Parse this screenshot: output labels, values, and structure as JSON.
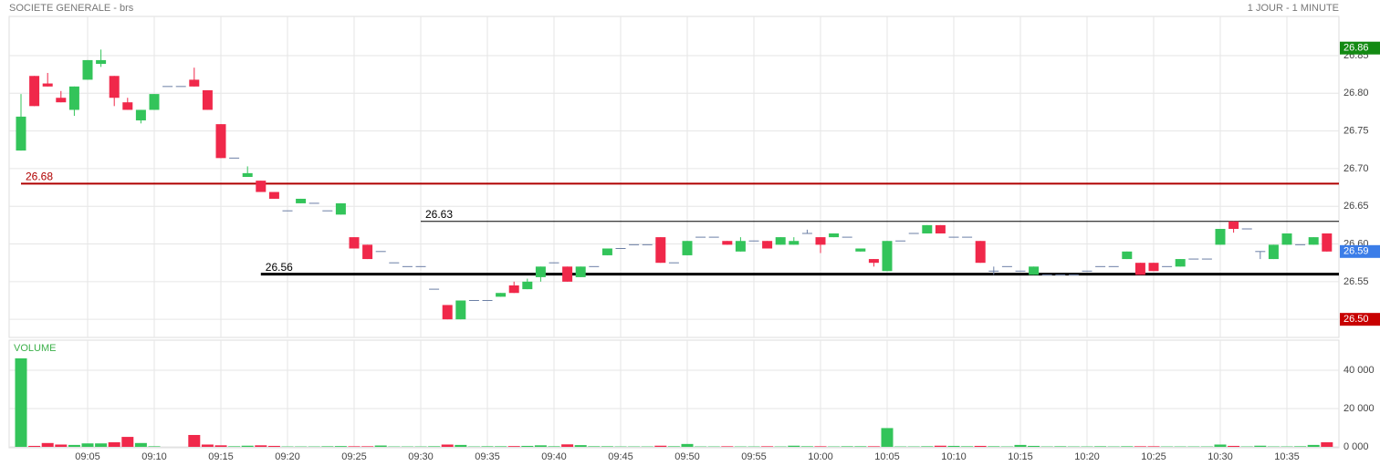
{
  "chart_data": {
    "type": "candlestick",
    "title": "SOCIETE GENERALE - brs",
    "subtitle": "1 JOUR - 1 MINUTE",
    "volume_label": "VOLUME",
    "categories": [
      null,
      null,
      null,
      null,
      null,
      "09:05",
      null,
      null,
      null,
      null,
      "09:10",
      null,
      null,
      null,
      null,
      "09:15",
      null,
      null,
      null,
      null,
      "09:20",
      null,
      null,
      null,
      null,
      "09:25",
      null,
      null,
      null,
      null,
      "09:30",
      null,
      null,
      null,
      null,
      "09:35",
      null,
      null,
      null,
      null,
      "09:40",
      null,
      null,
      null,
      null,
      "09:45",
      null,
      null,
      null,
      null,
      "09:50",
      null,
      null,
      null,
      null,
      "09:55",
      null,
      null,
      null,
      null,
      "10:00",
      null,
      null,
      null,
      null,
      "10:05",
      null,
      null,
      null,
      null,
      "10:10",
      null,
      null,
      null,
      null,
      "10:15",
      null,
      null,
      null,
      null,
      "10:20",
      null,
      null,
      null,
      null,
      "10:25",
      null,
      null,
      null,
      null,
      "10:30",
      null,
      null,
      null,
      null,
      "10:35",
      null,
      null,
      null
    ],
    "open": [
      26.724,
      26.823,
      26.813,
      26.794,
      26.778,
      26.818,
      26.839,
      26.823,
      26.788,
      26.764,
      26.778,
      26.809,
      26.809,
      26.818,
      26.804,
      26.759,
      26.714,
      26.689,
      26.684,
      26.669,
      26.644,
      26.654,
      26.654,
      26.644,
      26.639,
      26.609,
      26.599,
      26.59,
      26.575,
      26.57,
      26.57,
      26.54,
      26.519,
      26.5,
      26.525,
      26.525,
      26.53,
      26.545,
      26.54,
      26.556,
      26.575,
      26.57,
      26.556,
      26.57,
      26.585,
      26.594,
      26.599,
      26.599,
      26.609,
      26.575,
      26.585,
      26.609,
      26.609,
      26.604,
      26.59,
      26.604,
      26.604,
      26.599,
      26.599,
      26.614,
      26.609,
      26.609,
      26.609,
      26.59,
      26.58,
      26.564,
      26.604,
      26.614,
      26.614,
      26.625,
      26.609,
      26.609,
      26.604,
      26.564,
      26.57,
      26.564,
      26.559,
      26.559,
      26.559,
      26.559,
      26.564,
      26.57,
      26.57,
      26.58,
      26.575,
      26.575,
      26.57,
      26.57,
      26.58,
      26.58,
      26.599,
      26.63,
      26.62,
      26.59,
      26.58,
      26.599,
      26.599,
      26.599,
      26.614
    ],
    "high": [
      26.799,
      26.823,
      26.827,
      26.803,
      26.809,
      26.844,
      26.858,
      26.823,
      26.794,
      26.778,
      26.799,
      26.809,
      26.809,
      26.834,
      26.804,
      26.759,
      26.714,
      26.703,
      26.684,
      26.669,
      26.644,
      26.66,
      26.654,
      26.644,
      26.654,
      26.609,
      26.599,
      26.59,
      26.575,
      26.57,
      26.57,
      26.54,
      26.519,
      26.525,
      26.525,
      26.525,
      26.535,
      26.55,
      26.554,
      26.57,
      26.575,
      26.57,
      26.57,
      26.57,
      26.594,
      26.594,
      26.599,
      26.599,
      26.609,
      26.575,
      26.604,
      26.609,
      26.609,
      26.604,
      26.609,
      26.604,
      26.604,
      26.609,
      26.609,
      26.619,
      26.609,
      26.614,
      26.609,
      26.594,
      26.58,
      26.604,
      26.604,
      26.614,
      26.625,
      26.625,
      26.609,
      26.609,
      26.604,
      26.57,
      26.57,
      26.564,
      26.57,
      26.559,
      26.559,
      26.559,
      26.564,
      26.57,
      26.57,
      26.59,
      26.575,
      26.575,
      26.57,
      26.58,
      26.58,
      26.58,
      26.62,
      26.63,
      26.62,
      26.59,
      26.599,
      26.614,
      26.599,
      26.609,
      26.614
    ],
    "low": [
      26.724,
      26.783,
      26.809,
      26.788,
      26.77,
      26.818,
      26.835,
      26.783,
      26.778,
      26.76,
      26.778,
      26.809,
      26.809,
      26.809,
      26.778,
      26.714,
      26.714,
      26.689,
      26.669,
      26.66,
      26.644,
      26.654,
      26.654,
      26.644,
      26.639,
      26.594,
      26.58,
      26.59,
      26.575,
      26.57,
      26.57,
      26.54,
      26.5,
      26.5,
      26.525,
      26.525,
      26.53,
      26.535,
      26.54,
      26.55,
      26.575,
      26.55,
      26.556,
      26.57,
      26.585,
      26.594,
      26.599,
      26.599,
      26.575,
      26.575,
      26.585,
      26.609,
      26.609,
      26.599,
      26.59,
      26.604,
      26.594,
      26.599,
      26.599,
      26.614,
      26.588,
      26.609,
      26.609,
      26.59,
      26.57,
      26.564,
      26.604,
      26.614,
      26.614,
      26.614,
      26.609,
      26.609,
      26.575,
      26.559,
      26.57,
      26.564,
      26.559,
      26.559,
      26.559,
      26.559,
      26.564,
      26.57,
      26.57,
      26.58,
      26.559,
      26.564,
      26.57,
      26.57,
      26.58,
      26.58,
      26.599,
      26.615,
      26.62,
      26.58,
      26.58,
      26.599,
      26.599,
      26.599,
      26.59
    ],
    "close": [
      26.769,
      26.783,
      26.809,
      26.788,
      26.809,
      26.844,
      26.844,
      26.794,
      26.778,
      26.778,
      26.799,
      26.809,
      26.809,
      26.809,
      26.778,
      26.714,
      26.714,
      26.694,
      26.669,
      26.66,
      26.644,
      26.66,
      26.654,
      26.644,
      26.654,
      26.594,
      26.58,
      26.59,
      26.575,
      26.57,
      26.57,
      26.54,
      26.5,
      26.525,
      26.525,
      26.525,
      26.535,
      26.535,
      26.55,
      26.57,
      26.575,
      26.55,
      26.57,
      26.57,
      26.594,
      26.594,
      26.599,
      26.599,
      26.575,
      26.575,
      26.604,
      26.609,
      26.609,
      26.599,
      26.604,
      26.604,
      26.594,
      26.609,
      26.604,
      26.614,
      26.599,
      26.614,
      26.609,
      26.594,
      26.575,
      26.604,
      26.604,
      26.614,
      26.625,
      26.614,
      26.609,
      26.609,
      26.575,
      26.564,
      26.57,
      26.564,
      26.57,
      26.559,
      26.559,
      26.559,
      26.564,
      26.57,
      26.57,
      26.59,
      26.559,
      26.564,
      26.57,
      26.58,
      26.58,
      26.58,
      26.62,
      26.62,
      26.62,
      26.59,
      26.599,
      26.614,
      26.599,
      26.609,
      26.59
    ],
    "volume": [
      46200,
      500,
      2000,
      1200,
      1000,
      1800,
      1800,
      2400,
      5200,
      2000,
      300,
      0,
      0,
      6200,
      1200,
      800,
      300,
      600,
      800,
      500,
      200,
      200,
      200,
      300,
      400,
      300,
      300,
      700,
      200,
      200,
      200,
      300,
      1200,
      1000,
      200,
      300,
      300,
      400,
      500,
      800,
      300,
      1300,
      900,
      300,
      300,
      200,
      200,
      200,
      600,
      300,
      1500,
      200,
      200,
      300,
      200,
      200,
      300,
      200,
      600,
      300,
      300,
      200,
      300,
      300,
      300,
      9800,
      200,
      200,
      300,
      600,
      500,
      300,
      500,
      300,
      200,
      1000,
      500,
      200,
      300,
      200,
      200,
      300,
      200,
      300,
      300,
      300,
      200,
      200,
      200,
      200,
      1200,
      500,
      200,
      600,
      200,
      200,
      300,
      1000,
      2400
    ],
    "up_color": "#33c45a",
    "down_color": "#f0284a",
    "flat_color": "#6c7fa6",
    "ylim": [
      26.476,
      26.902
    ],
    "yticks": [
      {
        "value": 26.5,
        "label": "26.50"
      },
      26.55,
      {
        "value": 26.6,
        "label": "26.60"
      },
      26.65,
      {
        "value": 26.7,
        "label": "26.70"
      },
      26.75,
      {
        "value": 26.8,
        "label": "26.80"
      },
      26.85
    ],
    "volume_ylim": [
      0,
      55700
    ],
    "volume_yticks": [
      {
        "value": 0,
        "label": "0 000"
      },
      {
        "value": 20000,
        "label": "20 000"
      },
      {
        "value": 40000,
        "label": "40 000"
      }
    ],
    "levels": [
      {
        "value": 26.68,
        "color": "#b00000"
      },
      {
        "value": 26.63,
        "color": "#000000"
      },
      {
        "value": 26.56,
        "color": "#000000"
      }
    ],
    "badges": [
      {
        "value": 26.86,
        "color": "#138a13"
      },
      {
        "value": 26.59,
        "color": "#3b7de8"
      },
      {
        "value": 26.5,
        "label": "26.50",
        "color": "#c80000"
      }
    ],
    "grid": true
  }
}
